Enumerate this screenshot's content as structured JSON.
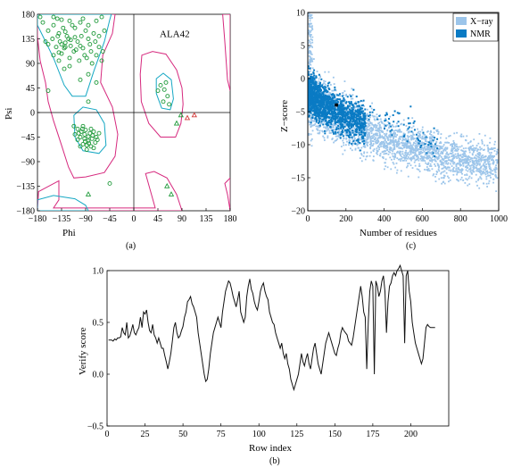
{
  "chart_data": [
    {
      "id": "a",
      "type": "scatter",
      "panel_label": "(a)",
      "xlabel": "Phi",
      "ylabel": "Psi",
      "xlim": [
        -180,
        180
      ],
      "ylim": [
        -180,
        180
      ],
      "xticks": [
        -180,
        -135,
        -90,
        -45,
        0,
        45,
        90,
        135,
        180
      ],
      "yticks": [
        -180,
        -135,
        -90,
        -45,
        0,
        45,
        90,
        135,
        180
      ],
      "annotations": [
        {
          "text": "ALA42",
          "x": 75,
          "y": 138
        }
      ],
      "regions": {
        "allowed_color": "#d6297e",
        "favored_color": "#16a8c4",
        "allowed": [
          [
            [
              -180,
              180
            ],
            [
              -180,
              140
            ],
            [
              -175,
              95
            ],
            [
              -165,
              55
            ],
            [
              -160,
              20
            ],
            [
              -150,
              -15
            ],
            [
              -135,
              -60
            ],
            [
              -122,
              -100
            ],
            [
              -112,
              -120
            ],
            [
              -90,
              -118
            ],
            [
              -55,
              -110
            ],
            [
              -35,
              -80
            ],
            [
              -30,
              -40
            ],
            [
              -40,
              10
            ],
            [
              -62,
              55
            ],
            [
              -58,
              105
            ],
            [
              -40,
              145
            ],
            [
              -35,
              180
            ]
          ],
          [
            [
              15,
              105
            ],
            [
              35,
              112
            ],
            [
              60,
              107
            ],
            [
              80,
              78
            ],
            [
              90,
              45
            ],
            [
              92,
              15
            ],
            [
              88,
              -20
            ],
            [
              78,
              -45
            ],
            [
              50,
              -45
            ],
            [
              28,
              -20
            ],
            [
              14,
              20
            ],
            [
              12,
              70
            ]
          ],
          [
            [
              22,
              -112
            ],
            [
              38,
              -108
            ],
            [
              62,
              -120
            ],
            [
              80,
              -150
            ],
            [
              90,
              -180
            ],
            [
              -180,
              -180
            ],
            [
              -178,
              -145
            ],
            [
              -140,
              -125
            ],
            [
              -140,
              -160
            ],
            [
              -150,
              -175
            ],
            [
              40,
              -175
            ]
          ],
          [
            [
              166,
              180
            ],
            [
              170,
              130
            ],
            [
              175,
              60
            ],
            [
              180,
              40
            ],
            [
              180,
              180
            ]
          ],
          [
            [
              170,
              -130
            ],
            [
              175,
              -150
            ],
            [
              180,
              -180
            ],
            [
              180,
              -120
            ]
          ]
        ],
        "favored": [
          [
            [
              -180,
              180
            ],
            [
              -180,
              160
            ],
            [
              -170,
              140
            ],
            [
              -150,
              100
            ],
            [
              -130,
              50
            ],
            [
              -115,
              30
            ],
            [
              -90,
              30
            ],
            [
              -75,
              75
            ],
            [
              -55,
              130
            ],
            [
              -45,
              170
            ],
            [
              -42,
              180
            ]
          ],
          [
            [
              -112,
              -5
            ],
            [
              -95,
              10
            ],
            [
              -70,
              5
            ],
            [
              -55,
              -20
            ],
            [
              -52,
              -60
            ],
            [
              -65,
              -75
            ],
            [
              -95,
              -70
            ],
            [
              -110,
              -45
            ]
          ],
          [
            [
              42,
              62
            ],
            [
              55,
              72
            ],
            [
              70,
              60
            ],
            [
              74,
              25
            ],
            [
              68,
              5
            ],
            [
              52,
              8
            ],
            [
              42,
              35
            ]
          ],
          [
            [
              -180,
              -160
            ],
            [
              -150,
              -152
            ],
            [
              -110,
              -158
            ],
            [
              -90,
              -170
            ],
            [
              -85,
              -180
            ],
            [
              -180,
              -180
            ]
          ]
        ]
      },
      "points_general": [
        [
          -150,
          175
        ],
        [
          -143,
          172
        ],
        [
          -135,
          170
        ],
        [
          -120,
          168
        ],
        [
          -100,
          165
        ],
        [
          -95,
          172
        ],
        [
          -85,
          160
        ],
        [
          -70,
          168
        ],
        [
          -60,
          175
        ],
        [
          -110,
          155
        ],
        [
          -90,
          150
        ],
        [
          -75,
          145
        ],
        [
          -125,
          140
        ],
        [
          -140,
          145
        ],
        [
          -160,
          150
        ],
        [
          -152,
          135
        ],
        [
          -138,
          130
        ],
        [
          -128,
          128
        ],
        [
          -118,
          133
        ],
        [
          -105,
          130
        ],
        [
          -98,
          140
        ],
        [
          -85,
          135
        ],
        [
          -72,
          130
        ],
        [
          -65,
          120
        ],
        [
          -80,
          112
        ],
        [
          -95,
          118
        ],
        [
          -112,
          112
        ],
        [
          -130,
          118
        ],
        [
          -145,
          120
        ],
        [
          -135,
          108
        ],
        [
          -120,
          100
        ],
        [
          -102,
          95
        ],
        [
          -88,
          100
        ],
        [
          -70,
          105
        ],
        [
          -60,
          95
        ],
        [
          -150,
          105
        ],
        [
          -160,
          125
        ],
        [
          -132,
          155
        ],
        [
          -115,
          160
        ],
        [
          -82,
          125
        ],
        [
          -142,
          140
        ],
        [
          -128,
          148
        ],
        [
          -122,
          135
        ],
        [
          -110,
          138
        ],
        [
          -100,
          122
        ],
        [
          -135,
          125
        ],
        [
          -128,
          120
        ],
        [
          -140,
          110
        ],
        [
          -118,
          122
        ],
        [
          -108,
          115
        ],
        [
          -150,
          160
        ],
        [
          -170,
          165
        ],
        [
          -165,
          130
        ],
        [
          -175,
          175
        ],
        [
          -92,
          105
        ],
        [
          -78,
          90
        ],
        [
          -65,
          140
        ],
        [
          -58,
          112
        ],
        [
          -130,
          80
        ],
        [
          -120,
          85
        ],
        [
          -85,
          70
        ],
        [
          -140,
          95
        ],
        [
          -100,
          60
        ],
        [
          -70,
          55
        ],
        [
          -55,
          150
        ],
        [
          -160,
          40
        ],
        [
          -85,
          20
        ],
        [
          -112,
          -25
        ],
        [
          -105,
          -30
        ],
        [
          -98,
          -35
        ],
        [
          -90,
          -32
        ],
        [
          -82,
          -38
        ],
        [
          -75,
          -35
        ],
        [
          -100,
          -45
        ],
        [
          -92,
          -48
        ],
        [
          -85,
          -52
        ],
        [
          -78,
          -48
        ],
        [
          -70,
          -45
        ],
        [
          -95,
          -58
        ],
        [
          -88,
          -60
        ],
        [
          -80,
          -62
        ],
        [
          -72,
          -55
        ],
        [
          -105,
          -50
        ],
        [
          -110,
          -40
        ],
        [
          -65,
          -38
        ],
        [
          -92,
          -40
        ],
        [
          -85,
          -44
        ],
        [
          -80,
          -30
        ],
        [
          -95,
          -25
        ],
        [
          -75,
          -65
        ],
        [
          -88,
          -68
        ],
        [
          -100,
          -62
        ],
        [
          -68,
          -50
        ],
        [
          -84,
          -56
        ],
        [
          -91,
          -53
        ],
        [
          -77,
          -42
        ],
        [
          -103,
          -38
        ],
        [
          -96,
          -30
        ],
        [
          50,
          50
        ],
        [
          57,
          42
        ],
        [
          63,
          30
        ],
        [
          55,
          20
        ],
        [
          60,
          55
        ],
        [
          66,
          15
        ],
        [
          45,
          40
        ],
        [
          -45,
          -130
        ]
      ],
      "points_glycine": [
        [
          80,
          -20
        ],
        [
          70,
          -150
        ],
        [
          -85,
          -150
        ],
        [
          62,
          -135
        ],
        [
          88,
          -5
        ]
      ],
      "points_outlier": [
        [
          100,
          -10
        ],
        [
          113,
          -5
        ]
      ]
    },
    {
      "id": "c",
      "type": "scatter",
      "panel_label": "(c)",
      "xlabel": "Number of residues",
      "ylabel": "Z−score",
      "xlim": [
        0,
        1000
      ],
      "ylim": [
        -20,
        10
      ],
      "xticks": [
        0,
        200,
        400,
        600,
        800,
        1000
      ],
      "yticks": [
        -20,
        -15,
        -10,
        -5,
        0,
        5,
        10
      ],
      "series": [
        {
          "name": "X−ray",
          "color": "#9cc5ea"
        },
        {
          "name": "NMR",
          "color": "#0a7bc4"
        }
      ],
      "highlight_point": {
        "x": 150,
        "y": -4.0,
        "color": "#000000"
      }
    },
    {
      "id": "b",
      "type": "line",
      "panel_label": "(b)",
      "xlabel": "Row index",
      "ylabel": "Verify score",
      "xlim": [
        0,
        225
      ],
      "ylim": [
        -0.5,
        1.0
      ],
      "xticks": [
        0,
        25,
        50,
        75,
        100,
        125,
        150,
        175,
        200
      ],
      "yticks": [
        -0.5,
        0.0,
        0.5,
        1.0
      ],
      "ytick_labels": [
        "−0.5",
        "0.0",
        "0.5",
        "1.0"
      ],
      "x_start": 1,
      "values": [
        0.33,
        0.33,
        0.33,
        0.32,
        0.34,
        0.33,
        0.35,
        0.35,
        0.36,
        0.45,
        0.4,
        0.38,
        0.5,
        0.35,
        0.37,
        0.42,
        0.48,
        0.4,
        0.38,
        0.42,
        0.45,
        0.55,
        0.45,
        0.6,
        0.58,
        0.62,
        0.5,
        0.42,
        0.4,
        0.48,
        0.38,
        0.35,
        0.3,
        0.35,
        0.3,
        0.25,
        0.25,
        0.18,
        0.12,
        0.05,
        0.12,
        0.2,
        0.32,
        0.45,
        0.5,
        0.4,
        0.35,
        0.37,
        0.42,
        0.46,
        0.55,
        0.6,
        0.7,
        0.72,
        0.75,
        0.68,
        0.65,
        0.6,
        0.55,
        0.4,
        0.3,
        0.2,
        0.1,
        0.0,
        -0.07,
        -0.05,
        0.05,
        0.2,
        0.3,
        0.4,
        0.45,
        0.5,
        0.55,
        0.5,
        0.45,
        0.6,
        0.7,
        0.8,
        0.85,
        0.9,
        0.88,
        0.82,
        0.75,
        0.7,
        0.65,
        0.72,
        0.8,
        0.6,
        0.55,
        0.5,
        0.55,
        0.75,
        0.85,
        0.92,
        0.82,
        0.78,
        0.7,
        0.65,
        0.62,
        0.7,
        0.8,
        0.85,
        0.88,
        0.8,
        0.75,
        0.72,
        0.6,
        0.55,
        0.5,
        0.48,
        0.4,
        0.35,
        0.3,
        0.25,
        0.3,
        0.2,
        0.15,
        0.2,
        0.1,
        0.05,
        -0.05,
        -0.1,
        -0.15,
        -0.1,
        -0.05,
        0.0,
        0.1,
        0.2,
        0.12,
        0.08,
        0.15,
        0.2,
        0.1,
        0.05,
        0.15,
        0.25,
        0.3,
        0.2,
        0.1,
        0.05,
        0.0,
        0.1,
        0.2,
        0.3,
        0.35,
        0.4,
        0.35,
        0.3,
        0.25,
        0.2,
        0.18,
        0.25,
        0.3,
        0.4,
        0.45,
        0.42,
        0.4,
        0.38,
        0.32,
        0.3,
        0.28,
        0.35,
        0.45,
        0.55,
        0.65,
        0.75,
        0.85,
        0.75,
        0.6,
        0.55,
        0.05,
        0.5,
        0.8,
        0.9,
        0.85,
        0.0,
        0.9,
        0.85,
        0.75,
        0.8,
        0.9,
        0.95,
        0.8,
        0.4,
        0.7,
        0.85,
        0.88,
        0.95,
        0.98,
        0.95,
        1.0,
        1.02,
        1.05,
        1.0,
        0.95,
        0.3,
        0.95,
        1.0,
        0.8,
        0.7,
        0.5,
        0.4,
        0.3,
        0.25,
        0.2,
        0.15,
        0.1,
        0.15,
        0.3,
        0.45,
        0.48,
        0.46,
        0.45,
        0.45,
        0.45,
        0.45
      ]
    }
  ]
}
